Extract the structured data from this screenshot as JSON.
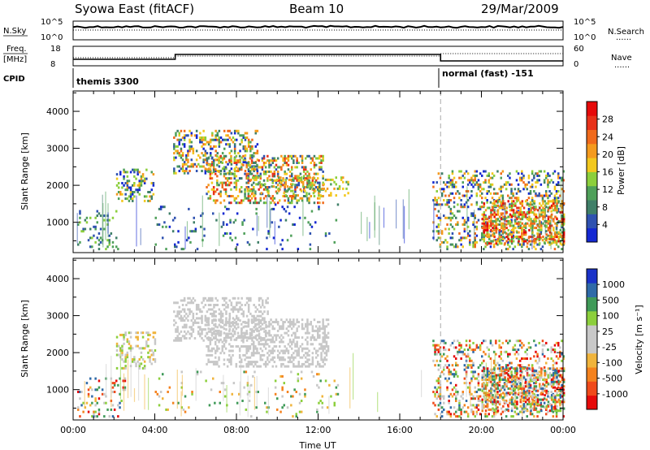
{
  "header": {
    "station": "Syowa East (fitACF)",
    "beam": "Beam 10",
    "date": "29/Mar/2009"
  },
  "labels": {
    "nsky": "N.Sky",
    "nsky_top": "10^5",
    "nsky_bottom": "10^0",
    "nsearch": "N.Search",
    "nsearch_top": "10^5",
    "nsearch_bottom": "10^0",
    "freq_line1": "Freq.",
    "freq_line2": "[MHz]",
    "freq_top": "18",
    "freq_bottom": "8",
    "nave": "Nave",
    "nave_top": "60",
    "nave_bottom": "0",
    "cpid": "CPID",
    "mode1": "themis 3300",
    "mode2": "normal (fast) -151",
    "dots": "······"
  },
  "colors": {
    "power": [
      "#1428d2",
      "#2f52b0",
      "#3f7f68",
      "#4fa05a",
      "#8ccf3c",
      "#f2c81e",
      "#f49a1e",
      "#f06a1c",
      "#e8321a",
      "#e60a0a"
    ],
    "velocity": [
      "#e60a0a",
      "#f04a1a",
      "#f4821e",
      "#f0b43c",
      "#c8c8c8",
      "#c8c8c8",
      "#8ccf3c",
      "#3f9a58",
      "#2f6aa8",
      "#1a32c8"
    ],
    "ground_scatter": "#bebebe"
  },
  "chart_data": [
    {
      "type": "heatmap",
      "name": "power",
      "ylabel": "Slant Range [km]",
      "xlabel": "",
      "xlim_hours": [
        0,
        24
      ],
      "ylim": [
        180,
        4550
      ],
      "yticks": [
        1000,
        2000,
        3000,
        4000
      ],
      "colorbar_label": "Power [dB]",
      "colorbar_ticks": [
        "4",
        "8",
        "12",
        "16",
        "20",
        "24",
        "28"
      ],
      "mode_change_hour": 18.0,
      "regions": [
        {
          "t": [
            0.2,
            2.2
          ],
          "r": [
            250,
            1300
          ],
          "density": 0.14,
          "level": [
            1,
            5
          ]
        },
        {
          "t": [
            2.1,
            3.9
          ],
          "r": [
            1550,
            2450
          ],
          "density": 0.3,
          "level": [
            0,
            7
          ]
        },
        {
          "t": [
            4.9,
            9.0
          ],
          "r": [
            2300,
            3500
          ],
          "density": 0.32,
          "level": [
            0,
            8
          ]
        },
        {
          "t": [
            6.5,
            12.2
          ],
          "r": [
            1500,
            2800
          ],
          "density": 0.34,
          "level": [
            1,
            9
          ]
        },
        {
          "t": [
            8.5,
            13.5
          ],
          "r": [
            1700,
            2200
          ],
          "density": 0.22,
          "level": [
            3,
            7
          ]
        },
        {
          "t": [
            4.0,
            13.0
          ],
          "r": [
            250,
            1500
          ],
          "density": 0.05,
          "level": [
            0,
            4
          ]
        },
        {
          "t": [
            17.6,
            24.0
          ],
          "r": [
            250,
            2400
          ],
          "density": 0.25,
          "level": [
            0,
            8
          ]
        },
        {
          "t": [
            20.0,
            24.0
          ],
          "r": [
            400,
            1600
          ],
          "density": 0.45,
          "level": [
            3,
            10
          ]
        }
      ]
    },
    {
      "type": "heatmap",
      "name": "velocity",
      "ylabel": "Slant Range [km]",
      "xlabel": "Time UT",
      "xlim_hours": [
        0,
        24
      ],
      "ylim": [
        180,
        4550
      ],
      "yticks": [
        1000,
        2000,
        3000,
        4000
      ],
      "xticks": [
        "00:00",
        "04:00",
        "08:00",
        "12:00",
        "16:00",
        "20:00",
        "00:00"
      ],
      "colorbar_label": "Velocity [m s⁻¹]",
      "colorbar_ticks": [
        "-1000",
        "-500",
        "-100",
        "-25",
        "25",
        "100",
        "500",
        "1000"
      ],
      "mode_change_hour": 18.0,
      "regions": [
        {
          "t": [
            0.2,
            2.5
          ],
          "r": [
            250,
            1300
          ],
          "density": 0.16,
          "level": [
            0,
            9
          ]
        },
        {
          "t": [
            2.1,
            4.0
          ],
          "r": [
            1550,
            2550
          ],
          "density": 0.28,
          "level": [
            3,
            7
          ]
        },
        {
          "t": [
            4.9,
            9.5
          ],
          "r": [
            2300,
            3500
          ],
          "density": 0.34,
          "level": [
            4,
            6
          ]
        },
        {
          "t": [
            6.5,
            12.5
          ],
          "r": [
            1600,
            2900
          ],
          "density": 0.36,
          "level": [
            4,
            6
          ]
        },
        {
          "t": [
            4.0,
            13.0
          ],
          "r": [
            250,
            1500
          ],
          "density": 0.05,
          "level": [
            2,
            8
          ]
        },
        {
          "t": [
            17.6,
            24.0
          ],
          "r": [
            250,
            2300
          ],
          "density": 0.26,
          "level": [
            0,
            9
          ]
        },
        {
          "t": [
            20.0,
            24.0
          ],
          "r": [
            400,
            1600
          ],
          "density": 0.45,
          "level": [
            0,
            9
          ]
        }
      ]
    }
  ]
}
